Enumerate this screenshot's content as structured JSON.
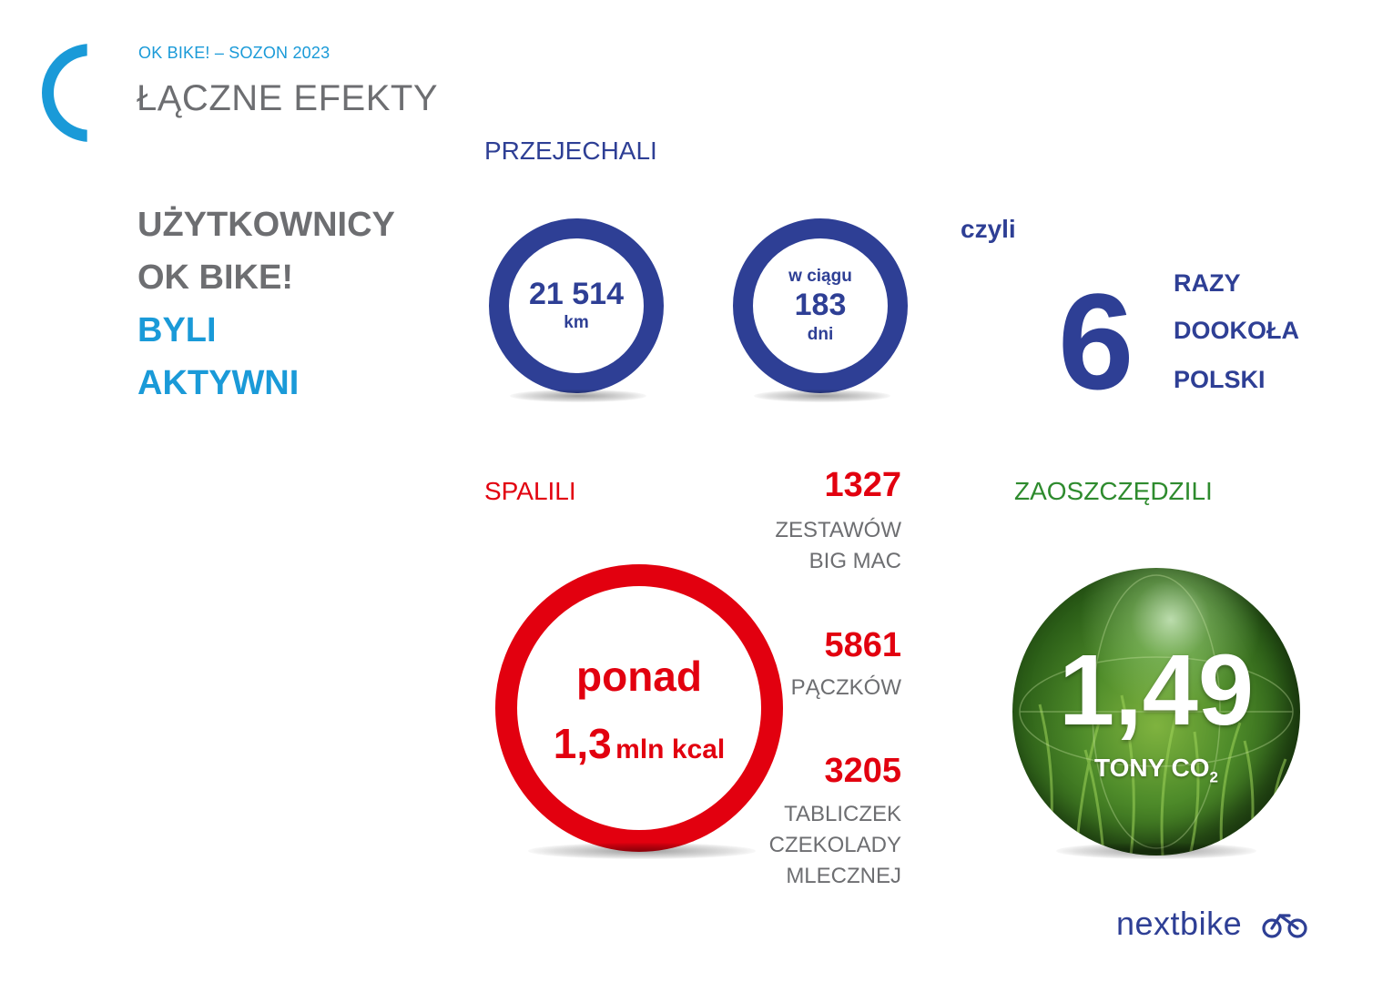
{
  "header": {
    "kicker": "OK BIKE! – SOZON 2023",
    "title": "ŁĄCZNE EFEKTY"
  },
  "intro": {
    "line1": "UŻYTKOWNICY",
    "line2": "OK BIKE!",
    "line3": "BYLI",
    "line4": "AKTYWNI"
  },
  "distance": {
    "label": "PRZEJECHALI",
    "km_value": "21 514",
    "km_unit": "km",
    "days_prefix": "w ciągu",
    "days_value": "183",
    "days_unit": "dni",
    "czyli": "czyli",
    "times_value": "6",
    "times_line1": "RAZY",
    "times_line2": "DOOKOŁA",
    "times_line3": "POLSKI"
  },
  "calories": {
    "label": "SPALILI",
    "prefix": "ponad",
    "value": "1,3",
    "unit": "mln kcal",
    "equivalents": [
      {
        "value": "1327",
        "line1": "ZESTAWÓW",
        "line2": "BIG MAC",
        "line3": ""
      },
      {
        "value": "5861",
        "line1": "PĄCZKÓW",
        "line2": "",
        "line3": ""
      },
      {
        "value": "3205",
        "line1": "TABLICZEK",
        "line2": "CZEKOLADY",
        "line3": "MLECZNEJ"
      }
    ]
  },
  "co2": {
    "label": "ZAOSZCZĘDZILI",
    "value": "1,49",
    "unit_main": "TONY CO",
    "unit_sub": "2"
  },
  "brand": {
    "logo_text": "nextbike",
    "logo_icon": "bicycle-icon"
  },
  "colors": {
    "accent_blue": "#1a9ad8",
    "dark_blue": "#2e3f95",
    "red": "#e2000f",
    "green": "#2e8b2e",
    "grey": "#6d6e71"
  }
}
